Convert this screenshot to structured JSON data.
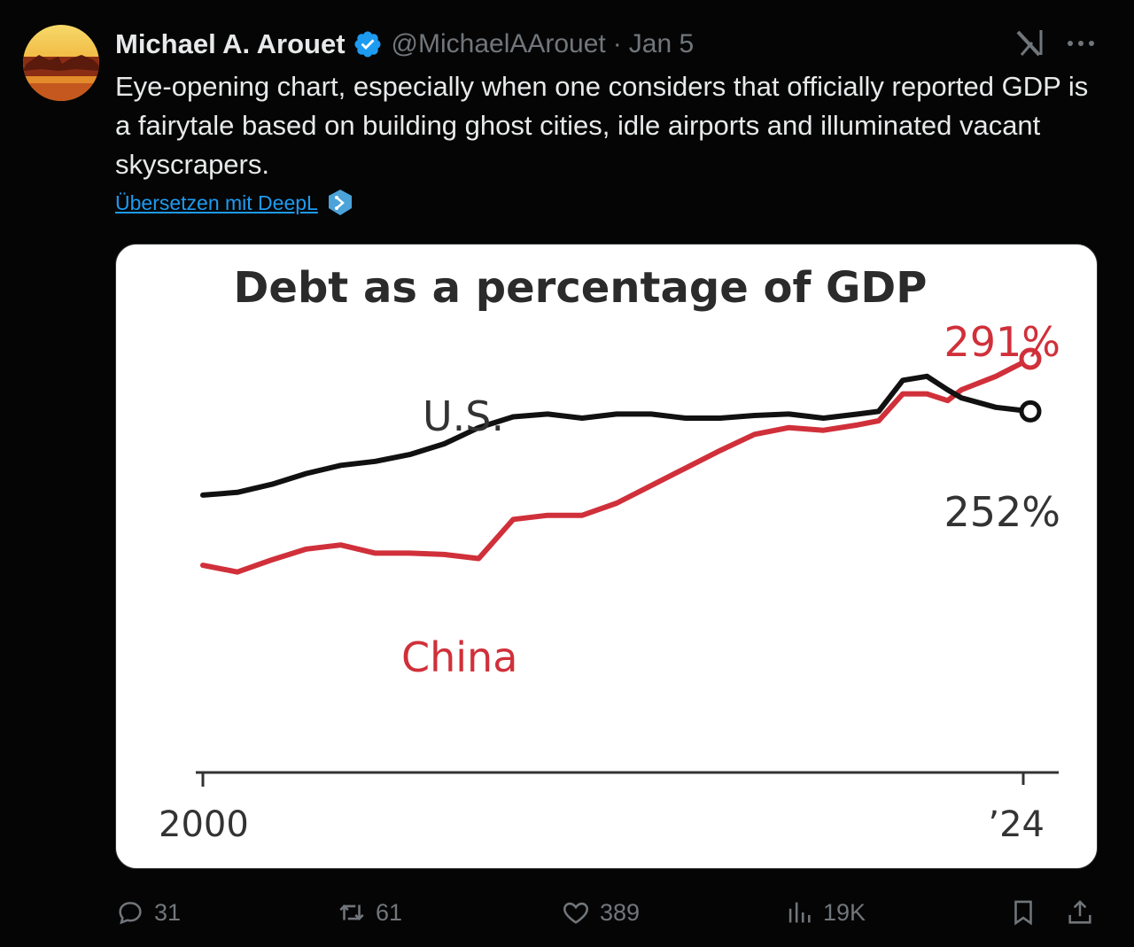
{
  "tweet": {
    "author_name": "Michael A. Arouet",
    "handle": "@MichaelAArouet",
    "separator": "·",
    "date": "Jan 5",
    "text": "Eye-opening chart, especially when one considers that officially reported GDP is a fairytale based on building ghost cities, idle airports and illuminated vacant skyscrapers.",
    "translate_label": "Übersetzen mit DeepL"
  },
  "icons": {
    "verified": "verified-badge-icon",
    "grok": "grok-icon",
    "more": "more-icon",
    "deepl": "deepl-icon",
    "reply": "reply-icon",
    "retweet": "retweet-icon",
    "like": "like-icon",
    "views": "views-icon",
    "bookmark": "bookmark-icon",
    "share": "share-icon"
  },
  "stats": {
    "replies": "31",
    "retweets": "61",
    "likes": "389",
    "views": "19K"
  },
  "colors": {
    "background": "#050505",
    "text": "#e7e9ea",
    "muted": "#71767b",
    "link": "#1d9bf0",
    "verified": "#1d9bf0",
    "us_series": "#111111",
    "china_series": "#d0303a"
  },
  "chart_data": {
    "type": "line",
    "title": "Debt as a percentage of GDP",
    "xlim": [
      2000,
      2024
    ],
    "ylim": [
      100,
      310
    ],
    "x_tick_labels": [
      "2000",
      "’24"
    ],
    "series": [
      {
        "name": "U.S.",
        "end_label": "252%",
        "color": "#111111",
        "x": [
          2000,
          2001,
          2002,
          2003,
          2004,
          2005,
          2006,
          2007,
          2008,
          2009,
          2010,
          2011,
          2012,
          2013,
          2014,
          2015,
          2016,
          2017,
          2018,
          2019,
          2019.6,
          2020.3,
          2021,
          2021.6,
          2022,
          2023,
          2024
        ],
        "values": [
          190,
          192,
          198,
          206,
          212,
          215,
          220,
          228,
          240,
          248,
          250,
          247,
          250,
          250,
          247,
          247,
          249,
          250,
          247,
          250,
          252,
          275,
          278,
          268,
          262,
          255,
          252
        ]
      },
      {
        "name": "China",
        "end_label": "291%",
        "color": "#d0303a",
        "x": [
          2000,
          2001,
          2002,
          2003,
          2004,
          2005,
          2006,
          2007,
          2008,
          2009,
          2010,
          2011,
          2012,
          2013,
          2014,
          2015,
          2016,
          2017,
          2018,
          2019,
          2019.6,
          2020.3,
          2021,
          2021.6,
          2022,
          2023,
          2024
        ],
        "values": [
          138,
          133,
          142,
          150,
          153,
          147,
          147,
          146,
          143,
          172,
          175,
          175,
          184,
          197,
          210,
          223,
          235,
          240,
          238,
          242,
          245,
          265,
          265,
          260,
          268,
          278,
          291
        ]
      }
    ]
  }
}
